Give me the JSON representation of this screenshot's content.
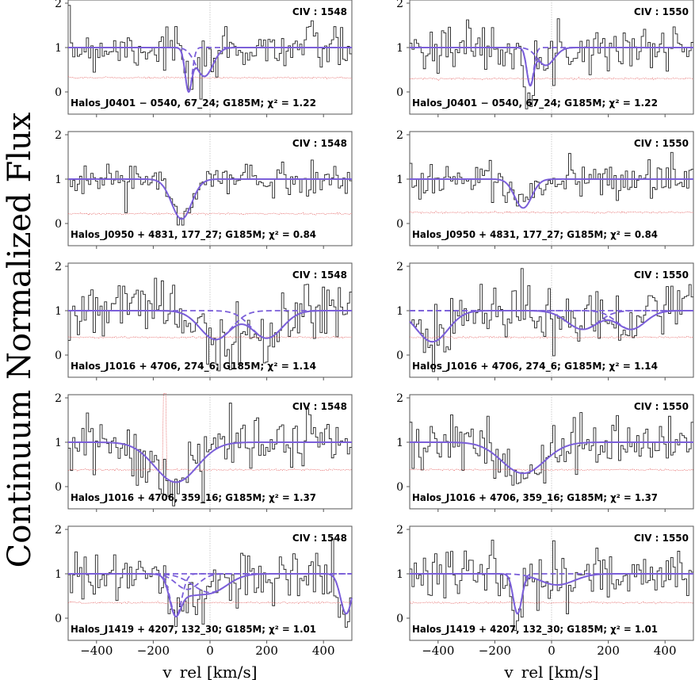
{
  "chart_data": {
    "type": "line",
    "ylabel": "Continuum Normalized Flux",
    "xlabel": "v_rel [km/s]",
    "xlim": [
      -500,
      500
    ],
    "ylim": [
      -0.5,
      2
    ],
    "xticks": [
      "−400",
      "−200",
      "0",
      "200",
      "400"
    ],
    "yticks": [
      "0",
      "1",
      "2"
    ],
    "colors": {
      "data": "#222222",
      "model": "#7b5fd9",
      "error": "#e05050",
      "zero": "#aaaaaa"
    },
    "panels": [
      {
        "row": 0,
        "col": 0,
        "line": "CIV : 1548",
        "label": "Halos_J0401 − 0540, 67_24; G185M; χ² = 1.22",
        "err": 0.32,
        "comps": [
          [
            -75,
            1.0,
            12
          ],
          [
            -20,
            0.65,
            30
          ]
        ]
      },
      {
        "row": 0,
        "col": 1,
        "line": "CIV : 1550",
        "label": "Halos_J0401 − 0540, 67_24; G185M; χ² = 1.22",
        "err": 0.3,
        "comps": [
          [
            -75,
            0.85,
            12
          ],
          [
            -20,
            0.4,
            30
          ]
        ]
      },
      {
        "row": 1,
        "col": 0,
        "line": "CIV : 1548",
        "label": "Halos_J0950 + 4831, 177_27; G185M; χ² = 0.84",
        "err": 0.22,
        "comps": [
          [
            -100,
            0.9,
            35
          ]
        ]
      },
      {
        "row": 1,
        "col": 1,
        "line": "CIV : 1550",
        "label": "Halos_J0950 + 4831, 177_27; G185M; χ² = 0.84",
        "err": 0.25,
        "comps": [
          [
            -100,
            0.65,
            30
          ]
        ]
      },
      {
        "row": 2,
        "col": 0,
        "line": "CIV : 1548",
        "label": "Halos_J1016 + 4706, 274_6; G185M; χ² = 1.14",
        "err": 0.4,
        "comps": [
          [
            20,
            0.65,
            55
          ],
          [
            200,
            0.62,
            55
          ]
        ]
      },
      {
        "row": 2,
        "col": 1,
        "line": "CIV : 1550",
        "label": "Halos_J1016 + 4706, 274_6; G185M; χ² = 1.14",
        "err": 0.4,
        "comps": [
          [
            -420,
            0.7,
            55
          ],
          [
            110,
            0.42,
            55
          ],
          [
            280,
            0.42,
            50
          ]
        ]
      },
      {
        "row": 3,
        "col": 0,
        "line": "CIV : 1548",
        "label": "Halos_J1016 + 4706, 359_16; G185M; χ² = 1.37",
        "err": 0.38,
        "comps": [
          [
            -120,
            0.9,
            75
          ]
        ]
      },
      {
        "row": 3,
        "col": 1,
        "line": "CIV : 1550",
        "label": "Halos_J1016 + 4706, 359_16; G185M; χ² = 1.37",
        "err": 0.38,
        "comps": [
          [
            -100,
            0.7,
            75
          ]
        ]
      },
      {
        "row": 4,
        "col": 0,
        "line": "CIV : 1548",
        "label": "Halos_J1419 + 4207, 132_30; G185M; χ² = 1.01",
        "err": 0.35,
        "comps": [
          [
            -120,
            0.95,
            20
          ],
          [
            -80,
            0.35,
            40
          ],
          [
            0,
            0.42,
            60
          ],
          [
            480,
            0.9,
            20
          ]
        ]
      },
      {
        "row": 4,
        "col": 1,
        "line": "CIV : 1550",
        "label": "Halos_J1419 + 4207, 132_30; G185M; χ² = 1.01",
        "err": 0.35,
        "comps": [
          [
            -120,
            0.9,
            15
          ],
          [
            20,
            0.25,
            60
          ]
        ]
      }
    ]
  }
}
